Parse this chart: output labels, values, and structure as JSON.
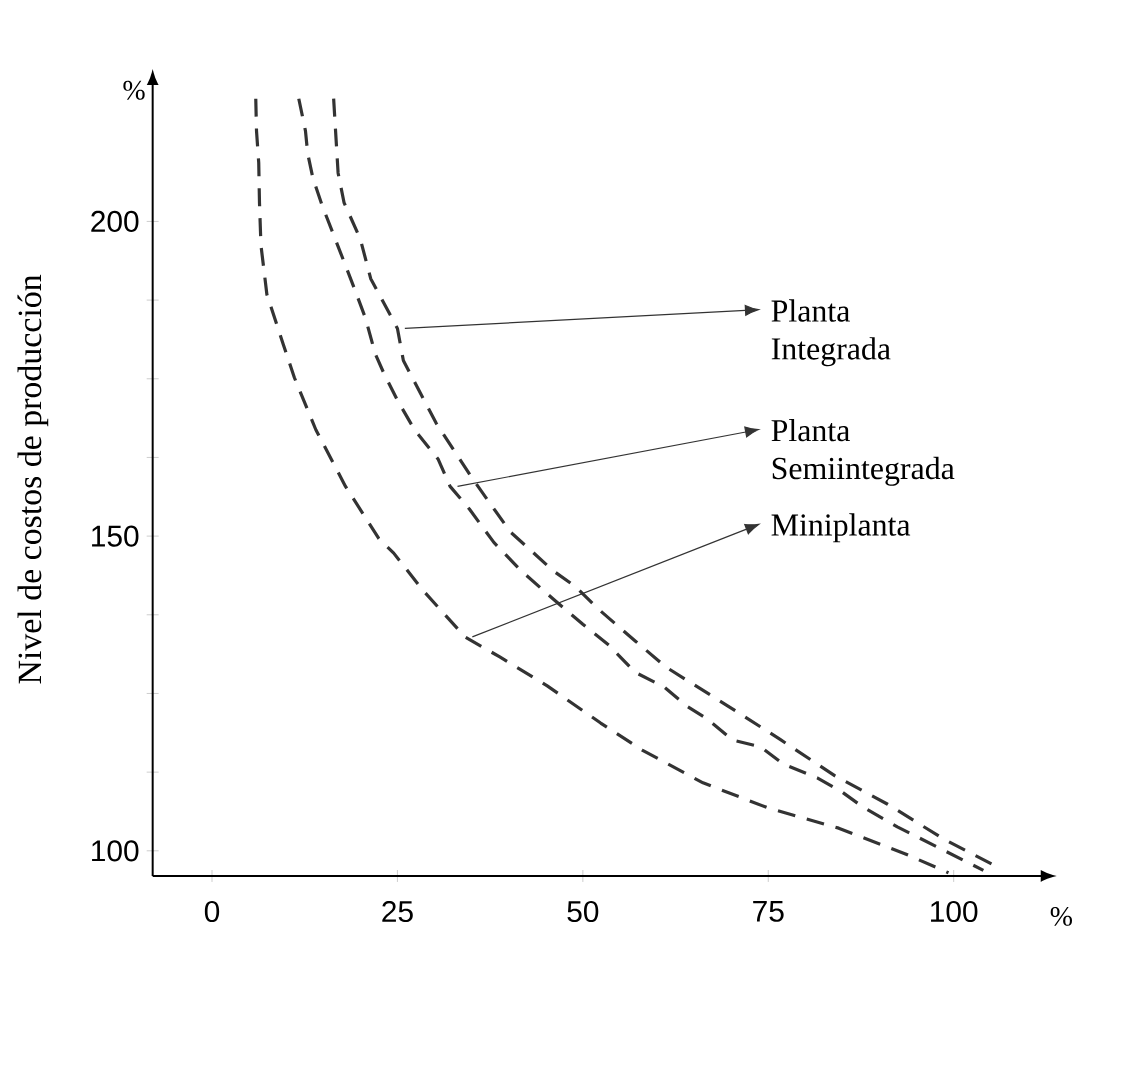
{
  "chart_data": {
    "type": "line",
    "xlabel": "%",
    "ylabel": "Nivel de costos de producción",
    "annotations": [
      "%"
    ],
    "xlim": [
      -8,
      112
    ],
    "ylim": [
      96,
      222
    ],
    "xticks": [
      0,
      25,
      50,
      75,
      100
    ],
    "yticks": [
      100,
      {
        "value": 112.5,
        "label": null
      },
      {
        "value": 125,
        "label": null
      },
      {
        "value": 137.5,
        "label": null
      },
      150,
      {
        "value": 162.5,
        "label": null
      },
      {
        "value": 175,
        "label": null
      },
      {
        "value": 187.5,
        "label": null
      },
      200
    ],
    "line_style": "dashed",
    "legend": "right",
    "series": [
      {
        "name": "Planta Integrada",
        "color": "#333333",
        "x": [
          16.4,
          17,
          17.8,
          20,
          21.4,
          25,
          25.8,
          30.2,
          35.2,
          40.2,
          46,
          49,
          52,
          57.1,
          61.2,
          69.3,
          76.6,
          84,
          91.1,
          98.6,
          105.6
        ],
        "values": [
          219.5,
          207.7,
          203,
          197.2,
          190.9,
          183,
          177.9,
          168,
          159,
          150.7,
          144.5,
          142,
          138.5,
          133.3,
          129.2,
          123.2,
          117.7,
          111.9,
          107.4,
          101.9,
          97.6
        ]
      },
      {
        "name": "Planta Semiintegrada",
        "color": "#333333",
        "x": [
          11.7,
          12.6,
          12.9,
          13.6,
          14.8,
          17.8,
          19.5,
          20.7,
          22,
          23.2,
          25,
          27.3,
          30.5,
          32.1,
          34.7,
          38,
          41.6,
          46,
          50,
          53.5,
          57,
          61,
          64,
          66.7,
          70.2,
          74,
          77,
          81.6,
          85,
          87.7,
          92.4,
          97.8,
          104
        ],
        "values": [
          219.5,
          214.4,
          210.8,
          206.9,
          202.7,
          193.6,
          188.4,
          184.6,
          179,
          175.8,
          171.6,
          166.9,
          162.2,
          157.9,
          154.3,
          149,
          144.6,
          140,
          136,
          132.7,
          128.4,
          126,
          123,
          121,
          117.6,
          116.5,
          113.8,
          111.6,
          109.3,
          107,
          103.8,
          100.6,
          96.9
        ]
      },
      {
        "name": "Miniplanta",
        "color": "#333333",
        "x": [
          5.9,
          6,
          6.3,
          6.4,
          6.6,
          7.4,
          9.6,
          11.1,
          14,
          18,
          22.5,
          24.5,
          28.5,
          34.1,
          38.8,
          45.2,
          52.4,
          58,
          66.2,
          75,
          84.5,
          93.5,
          99.3
        ],
        "values": [
          219.5,
          214.4,
          209.3,
          203,
          196.2,
          188.4,
          180.5,
          175.2,
          166.9,
          157.9,
          149.6,
          147.3,
          141.3,
          134,
          130.8,
          126.2,
          120.3,
          116,
          110.8,
          106.8,
          103.6,
          99.5,
          96.5
        ]
      }
    ]
  }
}
